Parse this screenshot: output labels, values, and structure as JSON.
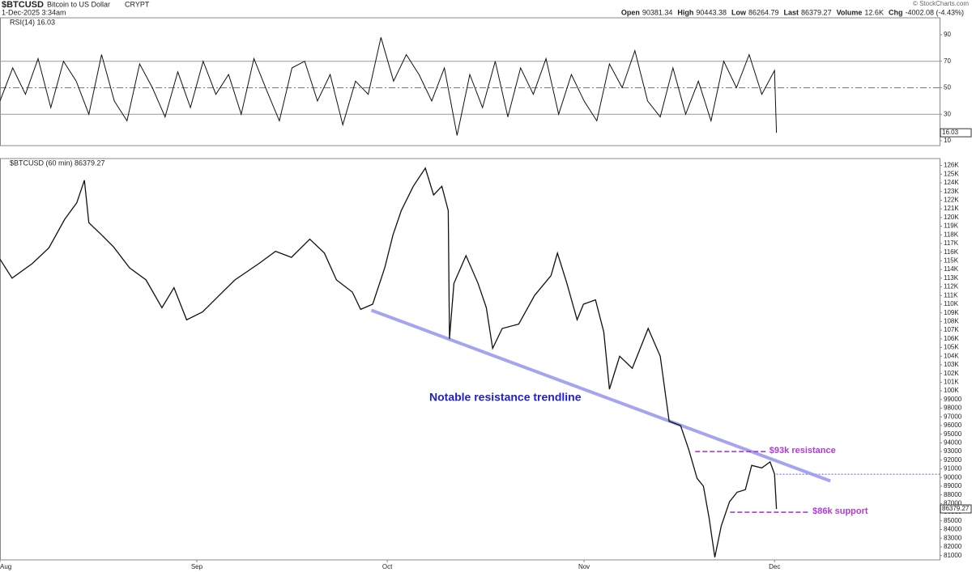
{
  "header": {
    "symbol": "$BTCUSD",
    "name": "Bitcoin to US Dollar",
    "exchange": "CRYPT",
    "date": "1-Dec-2025 3:34am",
    "source": "© StockCharts.com",
    "stats": [
      {
        "label": "Open",
        "value": "90381.34"
      },
      {
        "label": "High",
        "value": "90443.38"
      },
      {
        "label": "Low",
        "value": "86264.79"
      },
      {
        "label": "Last",
        "value": "86379.27"
      },
      {
        "label": "Volume",
        "value": "12.6K"
      },
      {
        "label": "Chg",
        "value": "-4002.08 (-4.43%)"
      }
    ]
  },
  "chart_data": [
    {
      "type": "line",
      "title": "RSI(14) 16.03",
      "color": "#111111",
      "x": [
        0,
        2,
        4,
        6,
        8,
        10,
        12,
        14,
        16,
        18,
        20,
        22,
        24,
        26,
        28,
        30,
        32,
        34,
        36,
        38,
        40,
        42,
        44,
        46,
        48,
        50,
        52,
        54,
        56,
        58,
        60,
        62,
        64,
        66,
        68,
        70,
        72,
        74,
        76,
        78,
        80,
        82,
        84,
        86,
        88,
        90,
        92,
        94,
        96,
        98,
        100,
        102,
        104,
        106,
        108,
        110,
        112,
        114,
        116,
        118,
        120,
        122,
        122.3
      ],
      "values": [
        40,
        65,
        45,
        72,
        35,
        70,
        55,
        30,
        75,
        40,
        25,
        68,
        50,
        28,
        62,
        35,
        70,
        45,
        60,
        30,
        72,
        48,
        25,
        65,
        70,
        40,
        60,
        22,
        55,
        45,
        88,
        55,
        75,
        60,
        40,
        65,
        14,
        60,
        35,
        70,
        28,
        65,
        45,
        72,
        30,
        60,
        40,
        25,
        68,
        50,
        78,
        40,
        28,
        65,
        30,
        55,
        25,
        70,
        50,
        75,
        45,
        63,
        16.03
      ],
      "xlim": [
        0,
        148
      ],
      "ylim": [
        6.3,
        102.8
      ],
      "yticks": [
        10,
        30,
        50,
        70,
        90
      ],
      "reference_lines": [
        30,
        50,
        70
      ]
    },
    {
      "type": "line",
      "title": "$BTCUSD (60 min) 86379.27",
      "color": "#111111",
      "x": [
        0,
        1.9,
        5.1,
        7.7,
        10.2,
        12.1,
        13.3,
        14.0,
        16.0,
        17.9,
        20.4,
        23.0,
        25.5,
        27.4,
        29.4,
        31.9,
        34.5,
        37.0,
        40.8,
        43.4,
        45.9,
        48.8,
        51.1,
        53.0,
        55.5,
        56.8,
        58.7,
        60.6,
        61.9,
        63.2,
        65.1,
        67.0,
        68.3,
        69.6,
        70.6,
        70.8,
        71.5,
        73.4,
        75.3,
        76.6,
        77.6,
        79.1,
        81.7,
        84.2,
        86.8,
        87.8,
        89.3,
        90.9,
        91.9,
        93.8,
        95.1,
        96.0,
        97.6,
        99.6,
        102.1,
        104.0,
        105.4,
        107.2,
        108.5,
        109.8,
        110.8,
        111.7,
        112.6,
        113.6,
        114.9,
        116.1,
        117.4,
        118.4,
        120.0,
        121.3,
        122.0,
        122.3
      ],
      "values": [
        115200,
        113000,
        114700,
        116500,
        119800,
        121700,
        124300,
        119400,
        118000,
        116600,
        114200,
        112800,
        109600,
        111900,
        108200,
        109100,
        111000,
        112800,
        114700,
        116100,
        115400,
        117500,
        115900,
        112800,
        111400,
        109400,
        110000,
        114200,
        118000,
        120800,
        123600,
        125700,
        122600,
        123600,
        120800,
        106000,
        112400,
        115600,
        112400,
        109600,
        104900,
        107200,
        107700,
        111000,
        113300,
        115900,
        112400,
        108200,
        110000,
        110500,
        106800,
        100200,
        104000,
        102600,
        107200,
        104000,
        96500,
        96000,
        93200,
        89900,
        89000,
        85300,
        80800,
        84400,
        87200,
        88300,
        88600,
        91400,
        91100,
        91800,
        90400,
        86379.27
      ],
      "xlim": [
        0,
        148
      ],
      "ylim": [
        80500,
        126800
      ],
      "xticks": [
        {
          "value": 0,
          "label": "Aug"
        },
        {
          "value": 31,
          "label": "Sep"
        },
        {
          "value": 61,
          "label": "Oct"
        },
        {
          "value": 92,
          "label": "Nov"
        },
        {
          "value": 122,
          "label": "Dec"
        }
      ],
      "yticks": [
        81000,
        82000,
        83000,
        84000,
        85000,
        86000,
        87000,
        88000,
        89000,
        90000,
        91000,
        92000,
        93000,
        94000,
        95000,
        96000,
        97000,
        98000,
        99000,
        {
          "value": 100000,
          "label": "100K"
        },
        {
          "value": 101000,
          "label": "101K"
        },
        {
          "value": 102000,
          "label": "102K"
        },
        {
          "value": 103000,
          "label": "103K"
        },
        {
          "value": 104000,
          "label": "104K"
        },
        {
          "value": 105000,
          "label": "105K"
        },
        {
          "value": 106000,
          "label": "106K"
        },
        {
          "value": 107000,
          "label": "107K"
        },
        {
          "value": 108000,
          "label": "108K"
        },
        {
          "value": 109000,
          "label": "109K"
        },
        {
          "value": 110000,
          "label": "110K"
        },
        {
          "value": 111000,
          "label": "111K"
        },
        {
          "value": 112000,
          "label": "112K"
        },
        {
          "value": 113000,
          "label": "113K"
        },
        {
          "value": 114000,
          "label": "114K"
        },
        {
          "value": 115000,
          "label": "115K"
        },
        {
          "value": 116000,
          "label": "116K"
        },
        {
          "value": 117000,
          "label": "117K"
        },
        {
          "value": 118000,
          "label": "118K"
        },
        {
          "value": 119000,
          "label": "119K"
        },
        {
          "value": 120000,
          "label": "120K"
        },
        {
          "value": 121000,
          "label": "121K"
        },
        {
          "value": 122000,
          "label": "122K"
        },
        {
          "value": 123000,
          "label": "123K"
        },
        {
          "value": 124000,
          "label": "124K"
        },
        {
          "value": 125000,
          "label": "125K"
        },
        {
          "value": 126000,
          "label": "126K"
        }
      ],
      "open_line": 90381.34,
      "annotations": [
        {
          "text": "Notable resistance trendline",
          "color": "#1f1fcc",
          "line_color": "#9b9bef",
          "x": [
            58.5,
            130.8
          ],
          "y": [
            109300,
            89600
          ]
        },
        {
          "text": "$93k resistance",
          "color": "#b13ad6",
          "line_color": "#a52bd8",
          "x": [
            109.5,
            120.8
          ],
          "y": [
            93000,
            93000
          ]
        },
        {
          "text": "$86k support",
          "color": "#b13ad6",
          "line_color": "#a52bd8",
          "x": [
            115,
            127.6
          ],
          "y": [
            86000,
            86000
          ]
        }
      ]
    }
  ]
}
